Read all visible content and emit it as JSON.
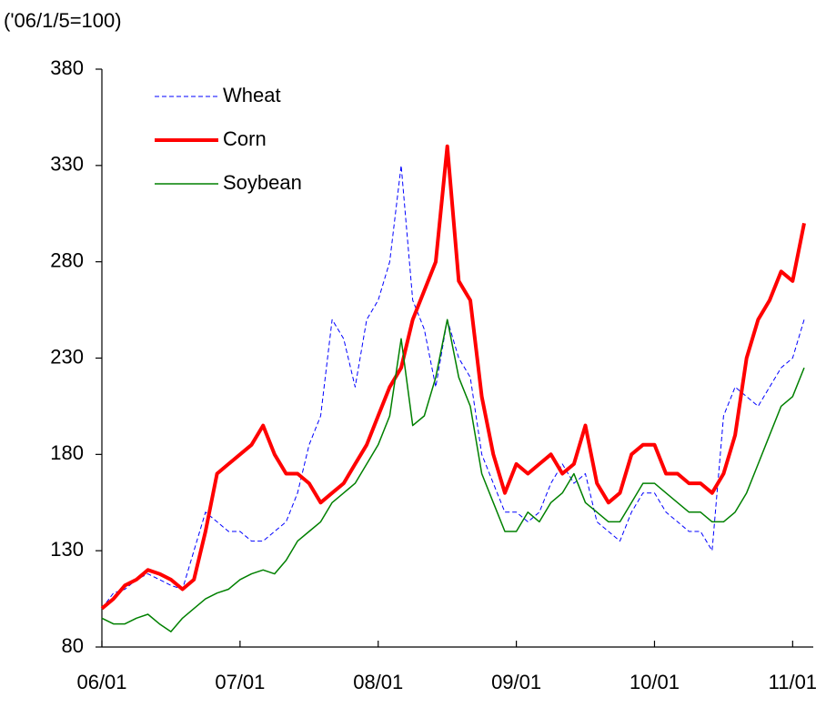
{
  "chart_data": {
    "type": "line",
    "y_label": "('06/1/5=100)",
    "x": [
      "06/01",
      "06/02",
      "06/03",
      "06/04",
      "06/05",
      "06/06",
      "06/07",
      "06/08",
      "06/09",
      "06/10",
      "06/11",
      "06/12",
      "07/01",
      "07/02",
      "07/03",
      "07/04",
      "07/05",
      "07/06",
      "07/07",
      "07/08",
      "07/09",
      "07/10",
      "07/11",
      "07/12",
      "08/01",
      "08/02",
      "08/03",
      "08/04",
      "08/05",
      "08/06",
      "08/07",
      "08/08",
      "08/09",
      "08/10",
      "08/11",
      "08/12",
      "09/01",
      "09/02",
      "09/03",
      "09/04",
      "09/05",
      "09/06",
      "09/07",
      "09/08",
      "09/09",
      "09/10",
      "09/11",
      "09/12",
      "10/01",
      "10/02",
      "10/03",
      "10/04",
      "10/05",
      "10/06",
      "10/07",
      "10/08",
      "10/09",
      "10/10",
      "10/11",
      "10/12",
      "11/01",
      "11/02"
    ],
    "series": [
      {
        "name": "Wheat",
        "color": "#0000ff",
        "line_style": "dashed",
        "values": [
          100,
          108,
          110,
          115,
          118,
          115,
          112,
          110,
          130,
          150,
          145,
          140,
          140,
          135,
          135,
          140,
          145,
          160,
          185,
          200,
          250,
          240,
          215,
          250,
          260,
          280,
          330,
          260,
          245,
          215,
          250,
          230,
          220,
          180,
          165,
          150,
          150,
          145,
          150,
          165,
          175,
          165,
          170,
          145,
          140,
          135,
          150,
          160,
          160,
          150,
          145,
          140,
          140,
          130,
          200,
          215,
          210,
          205,
          215,
          225,
          230,
          250
        ]
      },
      {
        "name": "Corn",
        "color": "#ff0000",
        "line_style": "solid",
        "values": [
          100,
          105,
          112,
          115,
          120,
          118,
          115,
          110,
          115,
          140,
          170,
          175,
          180,
          185,
          195,
          180,
          170,
          170,
          165,
          155,
          160,
          165,
          175,
          185,
          200,
          215,
          225,
          250,
          265,
          280,
          340,
          270,
          260,
          210,
          180,
          160,
          175,
          170,
          175,
          180,
          170,
          175,
          195,
          165,
          155,
          160,
          180,
          185,
          185,
          170,
          170,
          165,
          165,
          160,
          170,
          190,
          230,
          250,
          260,
          275,
          270,
          300
        ]
      },
      {
        "name": "Soybean",
        "color": "#008000",
        "line_style": "solid",
        "values": [
          95,
          92,
          92,
          95,
          97,
          92,
          88,
          95,
          100,
          105,
          108,
          110,
          115,
          118,
          120,
          118,
          125,
          135,
          140,
          145,
          155,
          160,
          165,
          175,
          185,
          200,
          240,
          195,
          200,
          220,
          250,
          220,
          205,
          170,
          155,
          140,
          140,
          150,
          145,
          155,
          160,
          170,
          155,
          150,
          145,
          145,
          155,
          165,
          165,
          160,
          155,
          150,
          150,
          145,
          145,
          150,
          160,
          175,
          190,
          205,
          210,
          225
        ]
      }
    ],
    "xlim": [
      "06/01",
      "11/02"
    ],
    "xticks": [
      "06/01",
      "07/01",
      "08/01",
      "09/01",
      "10/01",
      "11/01"
    ],
    "ylim": [
      80,
      380
    ],
    "yticks": [
      80,
      130,
      180,
      230,
      280,
      330,
      380
    ],
    "legend": "top-left"
  }
}
